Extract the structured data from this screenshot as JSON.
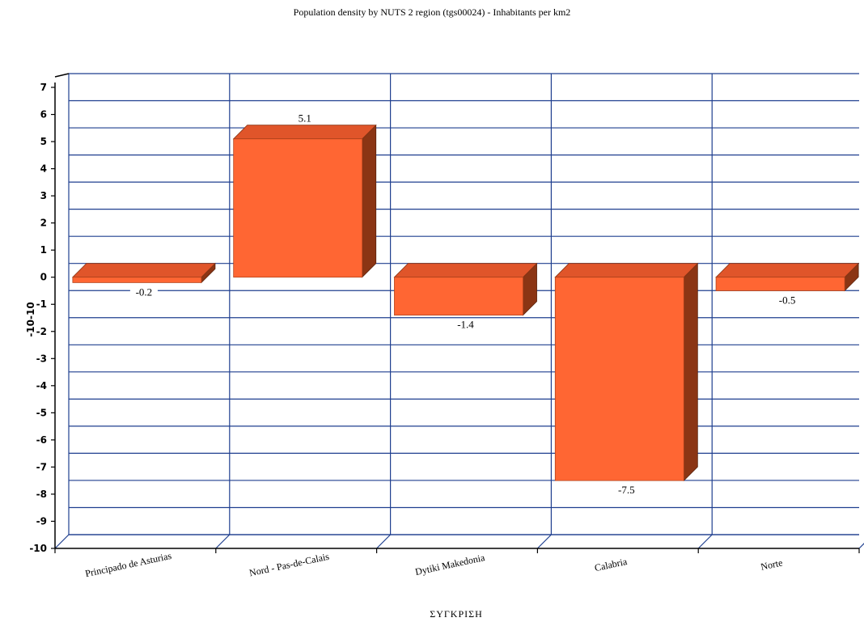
{
  "chart_data": {
    "type": "bar",
    "title": "Population density by NUTS 2 region (tgs00024) - Inhabitants per km2",
    "xlabel": "ΣΥΓΚΡΙΣΗ",
    "ylabel": "-10-10",
    "categories": [
      "Principado de Asturias",
      "Nord - Pas-de-Calais",
      "Dytiki Makedonia",
      "Calabria",
      "Norte"
    ],
    "values": [
      -0.2,
      5.1,
      -1.4,
      -7.5,
      -0.5
    ],
    "data_labels": [
      "-0.2",
      "5.1",
      "-1.4",
      "-7.5",
      "-0.5"
    ],
    "ylim": [
      -10,
      7
    ],
    "yticks": [
      7,
      6,
      5,
      4,
      3,
      2,
      1,
      0,
      -1,
      -2,
      -3,
      -4,
      -5,
      -6,
      -7,
      -8,
      -9,
      -10
    ],
    "grid": true,
    "legend": "none",
    "colors": {
      "bar_front": "#ff6633",
      "bar_top": "#e0552a",
      "bar_side": "#8b3514",
      "grid": "#1f3f8f",
      "axis": "#000000"
    }
  }
}
